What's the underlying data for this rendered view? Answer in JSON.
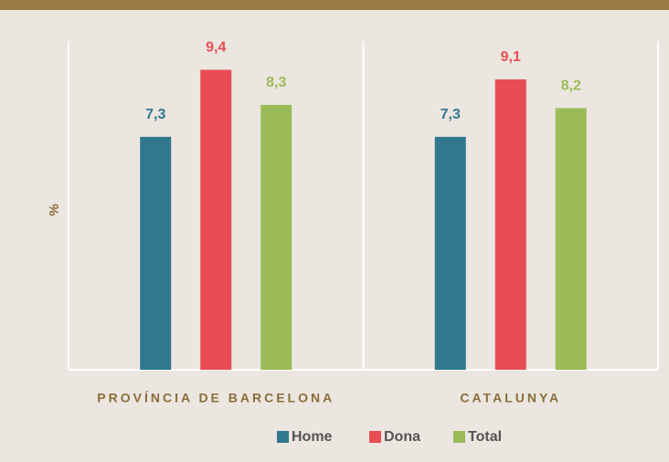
{
  "chart_data": {
    "type": "bar",
    "ylabel": "%",
    "categories": [
      "PROVÍNCIA DE BARCELONA",
      "CATALUNYA"
    ],
    "series": [
      {
        "name": "Home",
        "color": "#31788f",
        "values": [
          7.3,
          7.3
        ],
        "value_labels": [
          "7,3",
          "7,3"
        ]
      },
      {
        "name": "Dona",
        "color": "#e84c55",
        "values": [
          9.4,
          9.1
        ],
        "value_labels": [
          "9,4",
          "9,1"
        ]
      },
      {
        "name": "Total",
        "color": "#9bbb59",
        "values": [
          8.3,
          8.2
        ],
        "value_labels": [
          "8,3",
          "8,2"
        ]
      }
    ],
    "ylim": [
      0,
      10.3
    ],
    "grid": false,
    "legend": "bottom"
  }
}
